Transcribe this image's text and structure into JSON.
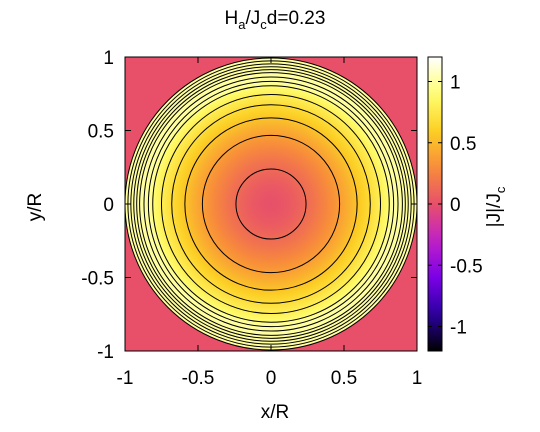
{
  "chart_data": {
    "type": "heatmap",
    "title": {
      "main": "H",
      "sub1": "a",
      "mid": "/J",
      "sub2": "c",
      "tail": "d=0.23"
    },
    "xlabel": "x/R",
    "ylabel": "y/R",
    "colorbar_label": {
      "main": "|J|/J",
      "sub": "c"
    },
    "xlim": [
      -1,
      1
    ],
    "ylim": [
      -1,
      1
    ],
    "zlim": [
      -1.2,
      1.2
    ],
    "x_ticks": [
      "-1",
      "-0.5",
      "0",
      "0.5",
      "1"
    ],
    "y_ticks": [
      "-1",
      "-0.5",
      "0",
      "0.5",
      "1"
    ],
    "colorbar_ticks": [
      "-1",
      "-0.5",
      "0",
      "0.5",
      "1"
    ],
    "outside_value": 0,
    "center_value": 0,
    "rim_value": 1,
    "saturation_radius": 0.82,
    "contour_radii": [
      0.24,
      0.47,
      0.59,
      0.68,
      0.75,
      0.81,
      0.84,
      0.87,
      0.9,
      0.92,
      0.94,
      0.96,
      0.98,
      1.0
    ],
    "colormap": [
      "#000000",
      "#2a00a0",
      "#7a00e6",
      "#c020c8",
      "#e8506a",
      "#f88c3a",
      "#fcd025",
      "#ffff70",
      "#ffffff"
    ]
  }
}
